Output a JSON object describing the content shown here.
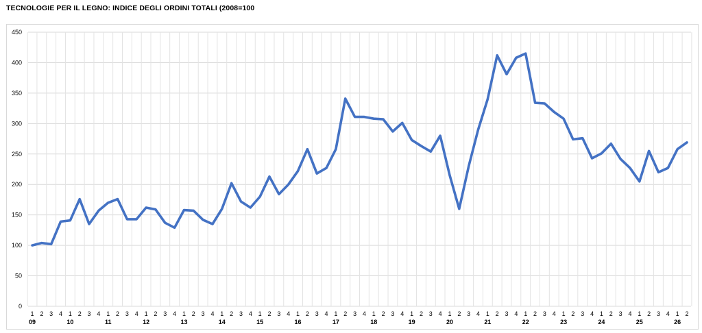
{
  "chart_data": {
    "type": "line",
    "title": "TECNOLOGIE PER IL LEGNO: INDICE DEGLI ORDINI TOTALI (2008=100",
    "ylim": [
      0,
      450
    ],
    "yticks": [
      0,
      50,
      100,
      150,
      200,
      250,
      300,
      350,
      400,
      450
    ],
    "grid": true,
    "legend": "none",
    "line_color": "#4472C4",
    "x_quarters": [
      "1",
      "2",
      "3",
      "4",
      "1",
      "2",
      "3",
      "4",
      "1",
      "2",
      "3",
      "4",
      "1",
      "2",
      "3",
      "4",
      "1",
      "2",
      "3",
      "4",
      "1",
      "2",
      "3",
      "4",
      "1",
      "2",
      "3",
      "4",
      "1",
      "2",
      "3",
      "4",
      "1",
      "2",
      "3",
      "4",
      "1",
      "2",
      "3",
      "4",
      "1",
      "2",
      "3",
      "4",
      "1",
      "2",
      "3",
      "4",
      "1",
      "2",
      "3",
      "4",
      "1",
      "2",
      "3",
      "4",
      "1",
      "2",
      "3",
      "4",
      "1",
      "2",
      "3",
      "4",
      "1",
      "2",
      "3",
      "4",
      "1",
      "2"
    ],
    "x_years": [
      "09",
      "10",
      "11",
      "12",
      "13",
      "14",
      "15",
      "16",
      "17",
      "18",
      "19",
      "20",
      "21",
      "22",
      "23",
      "24",
      "25",
      "26"
    ],
    "series": [
      {
        "values": [
          100,
          104,
          102,
          139,
          141,
          176,
          135,
          157,
          170,
          176,
          143,
          143,
          162,
          159,
          137,
          129,
          158,
          157,
          142,
          135,
          160,
          202,
          172,
          162,
          180,
          213,
          184,
          200,
          222,
          258,
          218,
          227,
          258,
          341,
          311,
          311,
          308,
          307,
          287,
          301,
          273,
          263,
          254,
          280,
          215,
          160,
          230,
          290,
          340,
          412,
          381,
          408,
          415,
          334,
          333,
          319,
          308,
          274,
          276,
          243,
          251,
          267,
          242,
          227,
          205,
          255,
          220,
          227,
          258,
          269
        ]
      }
    ]
  }
}
